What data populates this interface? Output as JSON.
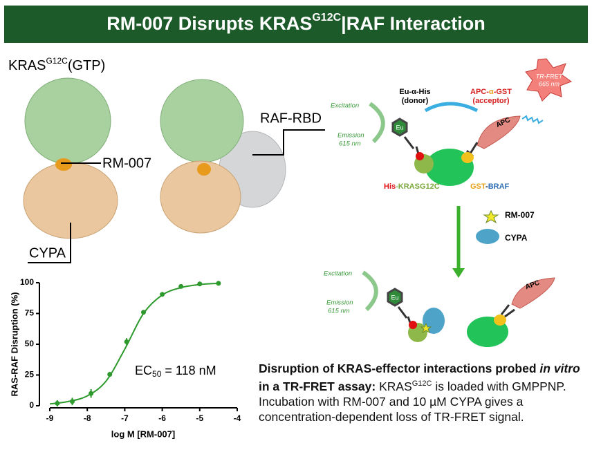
{
  "header": {
    "title": "RM-007 Disrupts KRAS",
    "title_sup": "G12C",
    "title_end": "|RAF Interaction"
  },
  "structures": {
    "kras": "KRAS",
    "kras_sup": "G12C",
    "kras_end": "(GTP)",
    "rm007": "RM-007",
    "cypa": "CYPA",
    "raf": "RAF-RBD"
  },
  "assay": {
    "excitation": "Excitation",
    "emission": "Emission",
    "emission_nm": "615 nm",
    "donor": "Eu-α-His",
    "donor_note": "(donor)",
    "acceptor_a": "APC-",
    "acceptor_b": "α",
    "acceptor_c": "-GST",
    "acceptor_note": "(acceptor)",
    "trfret": "TR-FRET",
    "trfret_nm": "665 nm",
    "apc": "APC",
    "eu": "Eu",
    "his": "His",
    "kras": "-KRASG12C",
    "gst": "GST",
    "dash": "-",
    "braf": "BRAF",
    "rm007": "RM-007",
    "cypa": "CYPA",
    "excitation2": "Excitation",
    "emission2": "Emission",
    "emission2_nm": "615 nm",
    "eu2": "Eu",
    "apc2": "APC"
  },
  "chart_data": {
    "type": "scatter",
    "y_label": "RAS-RAF Disruption (%)",
    "x_label": "log M [RM-007]",
    "annotation": {
      "text": "EC",
      "sub": "50",
      "end": " = 118 nM"
    },
    "xlim": [
      -9,
      -4
    ],
    "xticks": [
      -9,
      -8,
      -7,
      -6,
      -5,
      -4
    ],
    "ylim": [
      0,
      100
    ],
    "yticks": [
      0,
      25,
      50,
      75,
      100
    ],
    "color": "#2e9a2e",
    "points": {
      "x": [
        -8.8,
        -8.4,
        -7.9,
        -7.4,
        -6.95,
        -6.5,
        -6.0,
        -5.5,
        -5.0,
        -4.5
      ],
      "values": [
        2,
        3.5,
        10,
        25.5,
        52,
        76,
        90.5,
        97,
        99,
        99.5
      ],
      "errors": [
        2.5,
        3,
        3.5,
        2,
        3,
        1,
        1,
        1,
        1,
        1
      ]
    },
    "fit": {
      "x": [
        -9,
        -8.5,
        -8,
        -7.5,
        -7,
        -6.5,
        -6,
        -5.5,
        -5,
        -4.5
      ],
      "values": [
        1.5,
        3.5,
        8,
        20,
        46,
        75,
        90,
        96,
        98.5,
        99.5
      ]
    }
  },
  "caption": {
    "bold1": "Disruption of KRAS-effector interactions probed ",
    "italic": "in vitro",
    "bold2": " in a TR-FRET assay:",
    "text1": " KRAS",
    "sup": "G12C",
    "text2": " is loaded with GMPPNP. Incubation with RM-007 and 10 µM CYPA gives a concentration-dependent loss of TR-FRET signal."
  }
}
